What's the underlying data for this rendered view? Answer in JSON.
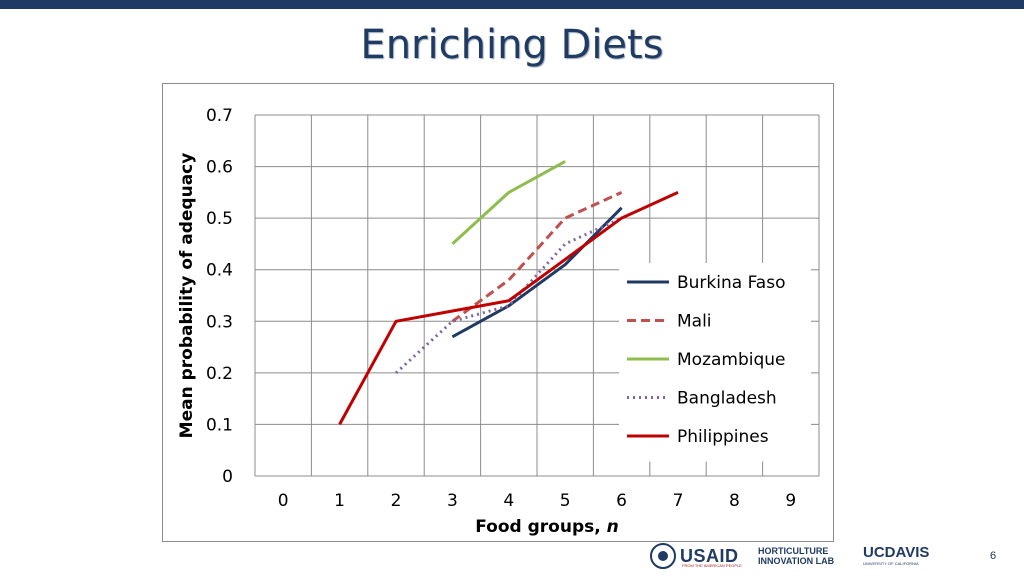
{
  "slide": {
    "title": "Enriching Diets",
    "page_number": "6",
    "logos": {
      "usaid": "USAID",
      "usaid_tagline": "FROM THE AMERICAN PEOPLE",
      "horticulture_line1": "HORTICULTURE",
      "horticulture_line2": "INNOVATION LAB",
      "ucdavis": "UCDAVIS",
      "ucdavis_sub": "UNIVERSITY OF CALIFORNIA"
    }
  },
  "colors": {
    "title": "#1f3a63",
    "topbar": "#1f3a63",
    "grid": "#8c8c8c"
  },
  "chart_data": {
    "type": "line",
    "xlabel": "Food groups, n",
    "ylabel": "Mean probability of adequacy",
    "xlim": [
      -0.5,
      9.5
    ],
    "ylim": [
      0,
      0.7
    ],
    "x_ticks": [
      "0",
      "1",
      "2",
      "3",
      "4",
      "5",
      "6",
      "7",
      "8",
      "9"
    ],
    "y_ticks": [
      "0",
      "0.1",
      "0.2",
      "0.3",
      "0.4",
      "0.5",
      "0.6",
      "0.7"
    ],
    "grid": "horizontal and vertical",
    "legend_position": "right",
    "series": [
      {
        "name": "Burkina Faso",
        "color": "#1f3a63",
        "dash": "solid",
        "x": [
          3,
          4,
          5,
          6
        ],
        "y": [
          0.27,
          0.33,
          0.41,
          0.52
        ]
      },
      {
        "name": "Mali",
        "color": "#c0504d",
        "dash": "dashed",
        "x": [
          3,
          4,
          5,
          6
        ],
        "y": [
          0.3,
          0.38,
          0.5,
          0.55
        ]
      },
      {
        "name": "Mozambique",
        "color": "#8fbc4f",
        "dash": "solid",
        "x": [
          3,
          4,
          5
        ],
        "y": [
          0.45,
          0.55,
          0.61
        ]
      },
      {
        "name": "Bangladesh",
        "color": "#8064a2",
        "dash": "dotted",
        "x": [
          2,
          3,
          4,
          5,
          6
        ],
        "y": [
          0.2,
          0.3,
          0.33,
          0.45,
          0.5
        ]
      },
      {
        "name": "Philippines",
        "color": "#c00000",
        "dash": "solid",
        "x": [
          1,
          2,
          3,
          4,
          5,
          6,
          7
        ],
        "y": [
          0.1,
          0.3,
          0.32,
          0.34,
          0.42,
          0.5,
          0.55
        ]
      }
    ]
  }
}
